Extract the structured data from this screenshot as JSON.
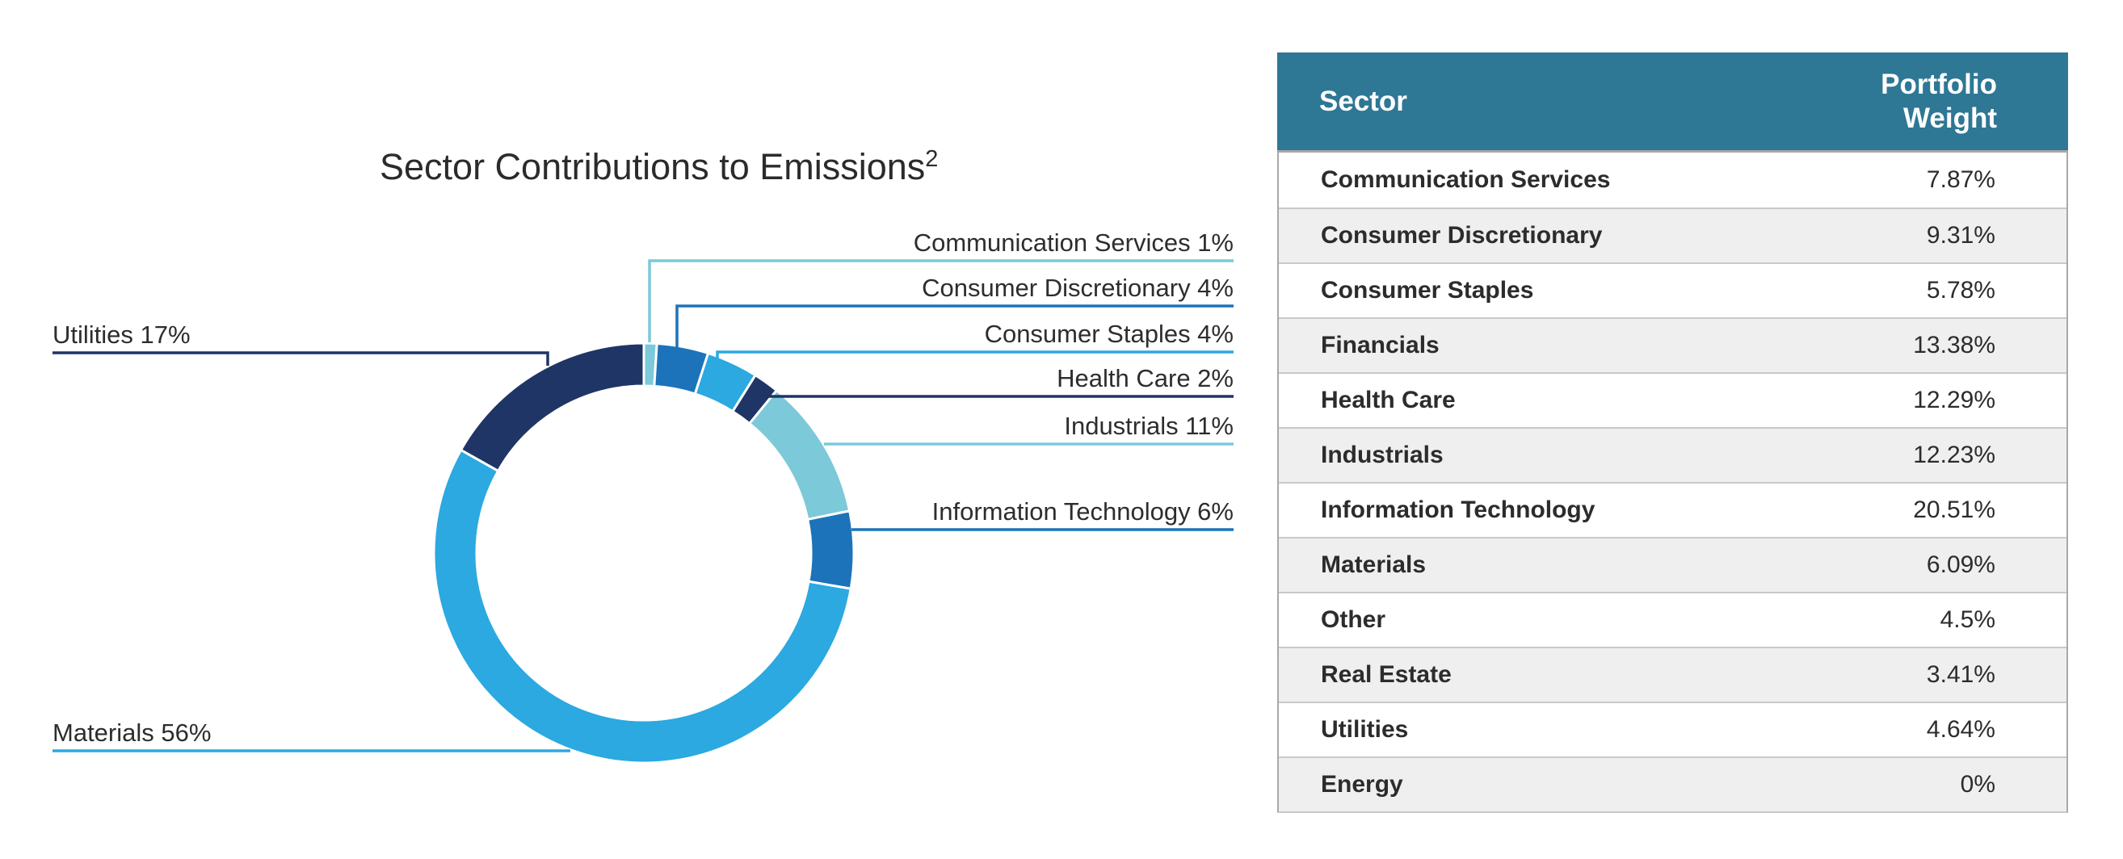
{
  "chart": {
    "title_text": "Sector Contributions to Emissions",
    "title_superscript": "2"
  },
  "chart_data": {
    "type": "pie",
    "subtype": "donut",
    "title": "Sector Contributions to Emissions",
    "labels": [
      "Communication Services",
      "Consumer Discretionary",
      "Consumer Staples",
      "Health Care",
      "Industrials",
      "Information Technology",
      "Materials",
      "Utilities"
    ],
    "values": [
      1,
      4,
      4,
      2,
      11,
      6,
      56,
      17
    ],
    "unit": "%",
    "direction": "clockwise",
    "start_angle_deg": 0,
    "legend_position": "callout-labels",
    "colors": [
      "#7CC9D9",
      "#1C73BA",
      "#2BA9E0",
      "#1F3566",
      "#7CC9D9",
      "#1C73BA",
      "#2BA9E0",
      "#1F3566"
    ],
    "callout_labels": [
      "Communication Services 1%",
      "Consumer Discretionary 4%",
      "Consumer Staples 4%",
      "Health Care 2%",
      "Industrials 11%",
      "Information Technology 6%",
      "Materials 56%",
      "Utilities 17%"
    ]
  },
  "table": {
    "header_bg": "#2E7795",
    "headers": [
      "Sector",
      "Portfolio Weight"
    ],
    "rows": [
      {
        "sector": "Communication Services",
        "weight": "7.87%"
      },
      {
        "sector": "Consumer Discretionary",
        "weight": "9.31%"
      },
      {
        "sector": "Consumer Staples",
        "weight": "5.78%"
      },
      {
        "sector": "Financials",
        "weight": "13.38%"
      },
      {
        "sector": "Health Care",
        "weight": "12.29%"
      },
      {
        "sector": "Industrials",
        "weight": "12.23%"
      },
      {
        "sector": "Information Technology",
        "weight": "20.51%"
      },
      {
        "sector": "Materials",
        "weight": "6.09%"
      },
      {
        "sector": "Other",
        "weight": "4.5%"
      },
      {
        "sector": "Real Estate",
        "weight": "3.41%"
      },
      {
        "sector": "Utilities",
        "weight": "4.64%"
      },
      {
        "sector": "Energy",
        "weight": "0%"
      }
    ]
  }
}
